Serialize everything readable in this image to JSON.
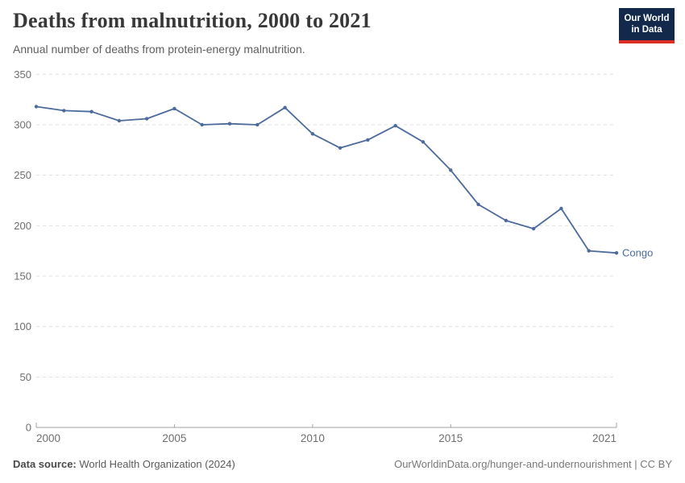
{
  "header": {
    "title": "Deaths from malnutrition, 2000 to 2021",
    "subtitle": "Annual number of deaths from protein-energy malnutrition.",
    "logo": {
      "line1": "Our World",
      "line2": "in Data",
      "bg_color": "#12294b",
      "stripe_color": "#dc2e22"
    }
  },
  "chart_data": {
    "type": "line",
    "title": "Deaths from malnutrition, 2000 to 2021",
    "subtitle": "Annual number of deaths from protein-energy malnutrition.",
    "xlabel": "",
    "ylabel": "",
    "xlim": [
      2000,
      2021
    ],
    "ylim": [
      0,
      350
    ],
    "x_ticks": [
      2000,
      2005,
      2010,
      2015,
      2021
    ],
    "y_ticks": [
      0,
      50,
      100,
      150,
      200,
      250,
      300,
      350
    ],
    "grid": "horizontal-dashed",
    "legend_position": "end-of-line-label",
    "x": [
      2000,
      2001,
      2002,
      2003,
      2004,
      2005,
      2006,
      2007,
      2008,
      2009,
      2010,
      2011,
      2012,
      2013,
      2014,
      2015,
      2016,
      2017,
      2018,
      2019,
      2020,
      2021
    ],
    "series": [
      {
        "name": "Congo",
        "color": "#4c6a9c",
        "values": [
          318,
          314,
          313,
          304,
          306,
          316,
          300,
          301,
          300,
          317,
          291,
          277,
          285,
          299,
          283,
          255,
          221,
          205,
          197,
          217,
          175,
          173
        ]
      }
    ]
  },
  "footer": {
    "source_label": "Data source:",
    "source_text": " World Health Organization (2024)",
    "credit": "OurWorldinData.org/hunger-and-undernourishment | CC BY"
  }
}
